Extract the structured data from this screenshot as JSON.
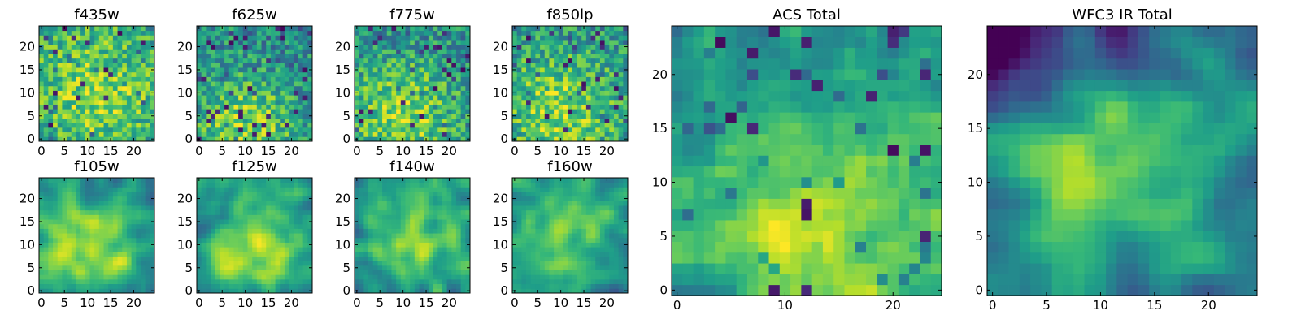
{
  "chart_data": [
    {
      "type": "heatmap",
      "title": "f435w",
      "xlabel": "",
      "ylabel": "",
      "grid_size": 25,
      "xlim": [
        -0.5,
        24.5
      ],
      "ylim": [
        -0.5,
        24.5
      ],
      "xticks": [
        0,
        5,
        10,
        15,
        20
      ],
      "yticks": [
        0,
        5,
        10,
        15,
        20
      ],
      "colormap": "viridis",
      "texture": "noisy",
      "bright_center": [
        12,
        10
      ],
      "bright_sigma": 12,
      "seed": 11
    },
    {
      "type": "heatmap",
      "title": "f625w",
      "xlabel": "",
      "ylabel": "",
      "grid_size": 25,
      "xlim": [
        -0.5,
        24.5
      ],
      "ylim": [
        -0.5,
        24.5
      ],
      "xticks": [
        0,
        5,
        10,
        15,
        20
      ],
      "yticks": [
        0,
        5,
        10,
        15,
        20
      ],
      "colormap": "viridis",
      "texture": "noisy",
      "bright_center": [
        10,
        3
      ],
      "bright_sigma": 8,
      "seed": 23
    },
    {
      "type": "heatmap",
      "title": "f775w",
      "xlabel": "",
      "ylabel": "",
      "grid_size": 25,
      "xlim": [
        -0.5,
        24.5
      ],
      "ylim": [
        -0.5,
        24.5
      ],
      "xticks": [
        0,
        5,
        10,
        15,
        20
      ],
      "yticks": [
        0,
        5,
        10,
        15,
        20
      ],
      "colormap": "viridis",
      "texture": "noisy",
      "bright_center": [
        10,
        5
      ],
      "bright_sigma": 9,
      "seed": 37
    },
    {
      "type": "heatmap",
      "title": "f850lp",
      "xlabel": "",
      "ylabel": "",
      "grid_size": 25,
      "xlim": [
        -0.5,
        24.5
      ],
      "ylim": [
        -0.5,
        24.5
      ],
      "xticks": [
        0,
        5,
        10,
        15,
        20
      ],
      "yticks": [
        0,
        5,
        10,
        15,
        20
      ],
      "colormap": "viridis",
      "texture": "noisy",
      "bright_center": [
        10,
        6
      ],
      "bright_sigma": 10,
      "seed": 41
    },
    {
      "type": "heatmap",
      "title": "f105w",
      "xlabel": "",
      "ylabel": "",
      "grid_size": 25,
      "xlim": [
        -0.5,
        24.5
      ],
      "ylim": [
        -0.5,
        24.5
      ],
      "xticks": [
        0,
        5,
        10,
        15,
        20
      ],
      "yticks": [
        0,
        5,
        10,
        15,
        20
      ],
      "colormap": "viridis",
      "texture": "smooth",
      "bright_center": [
        11,
        9
      ],
      "bright_sigma": 9,
      "seed": 53
    },
    {
      "type": "heatmap",
      "title": "f125w",
      "xlabel": "",
      "ylabel": "",
      "grid_size": 25,
      "xlim": [
        -0.5,
        24.5
      ],
      "ylim": [
        -0.5,
        24.5
      ],
      "xticks": [
        0,
        5,
        10,
        15,
        20
      ],
      "yticks": [
        0,
        5,
        10,
        15,
        20
      ],
      "colormap": "viridis",
      "texture": "smooth",
      "bright_center": [
        12,
        9
      ],
      "bright_sigma": 8,
      "seed": 67
    },
    {
      "type": "heatmap",
      "title": "f140w",
      "xlabel": "",
      "ylabel": "",
      "grid_size": 25,
      "xlim": [
        -0.5,
        24.5
      ],
      "ylim": [
        -0.5,
        24.5
      ],
      "xticks": [
        0,
        5,
        10,
        15,
        20
      ],
      "yticks": [
        0,
        5,
        10,
        15,
        20
      ],
      "colormap": "viridis",
      "texture": "smooth",
      "bright_center": [
        12,
        11
      ],
      "bright_sigma": 7,
      "seed": 79
    },
    {
      "type": "heatmap",
      "title": "f160w",
      "xlabel": "",
      "ylabel": "",
      "grid_size": 25,
      "xlim": [
        -0.5,
        24.5
      ],
      "ylim": [
        -0.5,
        24.5
      ],
      "xticks": [
        0,
        5,
        10,
        15,
        20
      ],
      "yticks": [
        0,
        5,
        10,
        15,
        20
      ],
      "colormap": "viridis",
      "texture": "smooth",
      "bright_center": [
        12,
        12
      ],
      "bright_sigma": 7,
      "seed": 83
    },
    {
      "type": "heatmap",
      "title": "ACS Total",
      "xlabel": "",
      "ylabel": "",
      "grid_size": 25,
      "xlim": [
        -0.5,
        24.5
      ],
      "ylim": [
        -0.5,
        24.5
      ],
      "xticks": [
        0,
        10,
        20
      ],
      "yticks": [
        0,
        5,
        10,
        15,
        20
      ],
      "colormap": "viridis",
      "texture": "blocky",
      "bright_center": [
        13,
        3
      ],
      "bright_sigma": 9,
      "seed": 97
    },
    {
      "type": "heatmap",
      "title": "WFC3 IR Total",
      "xlabel": "",
      "ylabel": "",
      "grid_size": 25,
      "xlim": [
        -0.5,
        24.5
      ],
      "ylim": [
        -0.5,
        24.5
      ],
      "xticks": [
        0,
        5,
        10,
        15,
        20
      ],
      "yticks": [
        0,
        5,
        10,
        15,
        20
      ],
      "colormap": "viridis",
      "texture": "smooth-dark-top",
      "bright_center": [
        12,
        12
      ],
      "bright_sigma": 6,
      "seed": 101
    }
  ],
  "colors": {
    "viridis_stops": [
      "#440154",
      "#482878",
      "#3e4989",
      "#31688e",
      "#26828e",
      "#1f9e89",
      "#35b779",
      "#6ece58",
      "#b5de2b",
      "#fde725"
    ],
    "axis": "#000000",
    "background": "#ffffff"
  }
}
